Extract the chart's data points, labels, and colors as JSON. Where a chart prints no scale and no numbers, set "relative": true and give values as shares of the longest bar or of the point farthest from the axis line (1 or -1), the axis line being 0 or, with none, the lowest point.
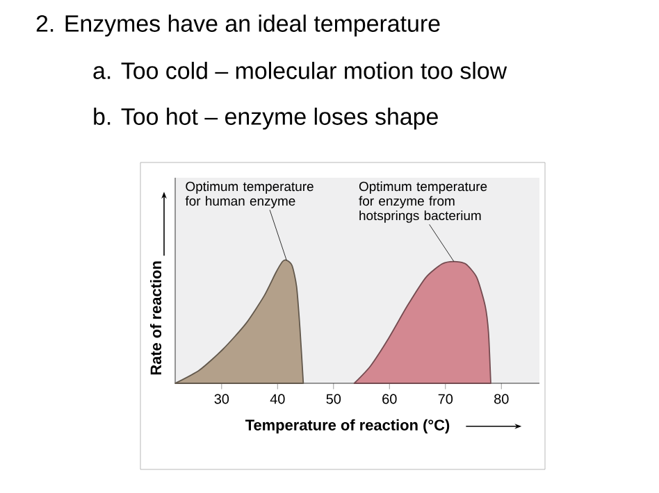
{
  "chart_data": {
    "type": "area",
    "title": "2.  Enzymes have an ideal temperature",
    "xlabel": "Temperature of reaction (°C)",
    "ylabel": "Rate of reaction",
    "relative": true,
    "xlim": [
      21.7,
      86.8
    ],
    "xticks": [
      30,
      40,
      50,
      60,
      70,
      80
    ],
    "series": [
      {
        "color": "#b3a08a",
        "x": [
          21.7,
          26.0,
          30.2,
          34.3,
          37.6,
          39.7,
          40.9,
          41.6,
          42.6,
          43.4,
          44.0,
          44.6
        ],
        "values": [
          0,
          0.106,
          0.275,
          0.483,
          0.71,
          0.9,
          0.99,
          1,
          0.955,
          0.785,
          0.445,
          0
        ]
      },
      {
        "color": "#d38891",
        "x": [
          53.7,
          56.6,
          59.9,
          63.2,
          66.5,
          69.4,
          71.5,
          73.6,
          75.6,
          77.1,
          77.7,
          78.1
        ],
        "values": [
          0,
          0.14,
          0.37,
          0.63,
          0.86,
          0.97,
          0.99,
          0.97,
          0.86,
          0.63,
          0.41,
          0
        ]
      }
    ],
    "annotations": [
      "a.  Too cold – molecular motion too slow",
      "b.  Too hot – enzyme loses shape",
      {
        "text": "Optimum temperature for human enzyme",
        "x": 41.6,
        "y": 1
      },
      {
        "text": "Optimum temperature for enzyme from hotsprings bacterium",
        "x": 71.5,
        "y": 0.99
      }
    ]
  }
}
